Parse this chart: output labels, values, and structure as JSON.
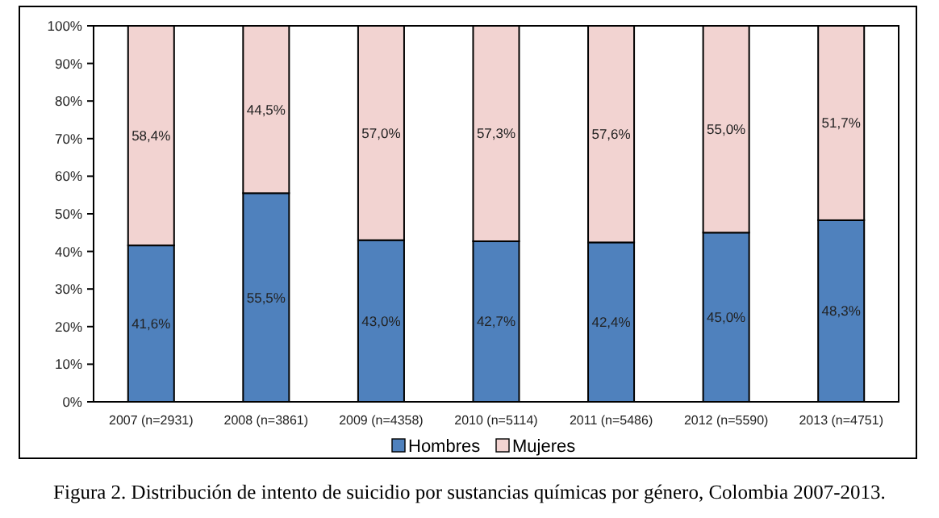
{
  "chart_data": {
    "type": "bar",
    "stacked": true,
    "categories": [
      "2007 (n=2931)",
      "2008 (n=3861)",
      "2009 (n=4358)",
      "2010 (n=5114)",
      "2011 (n=5486)",
      "2012 (n=5590)",
      "2013 (n=4751)"
    ],
    "series": [
      {
        "name": "Hombres",
        "color": "#4f81bd",
        "values": [
          41.6,
          55.5,
          43.0,
          42.7,
          42.4,
          45.0,
          48.3
        ],
        "value_labels": [
          "41,6%",
          "55,5%",
          "43,0%",
          "42,7%",
          "42,4%",
          "45,0%",
          "48,3%"
        ]
      },
      {
        "name": "Mujeres",
        "color": "#f2d3d1",
        "values": [
          58.4,
          44.5,
          57.0,
          57.3,
          57.6,
          55.0,
          51.7
        ],
        "value_labels": [
          "58,4%",
          "44,5%",
          "57,0%",
          "57,3%",
          "57,6%",
          "55,0%",
          "51,7%"
        ]
      }
    ],
    "ylim": [
      0,
      100
    ],
    "yticks": [
      {
        "value": 0,
        "label": "0%"
      },
      {
        "value": 10,
        "label": "10%"
      },
      {
        "value": 20,
        "label": "20%"
      },
      {
        "value": 30,
        "label": "30%"
      },
      {
        "value": 40,
        "label": "40%"
      },
      {
        "value": 50,
        "label": "50%"
      },
      {
        "value": 60,
        "label": "60%"
      },
      {
        "value": 70,
        "label": "70%"
      },
      {
        "value": 80,
        "label": "80%"
      },
      {
        "value": 90,
        "label": "90%"
      },
      {
        "value": 100,
        "label": "100%"
      }
    ],
    "grid": false,
    "legend": "bottom",
    "annotations": [
      "Figura 2. Distribución de intento de suicidio por sustancias químicas por género, Colombia 2007-2013."
    ]
  }
}
